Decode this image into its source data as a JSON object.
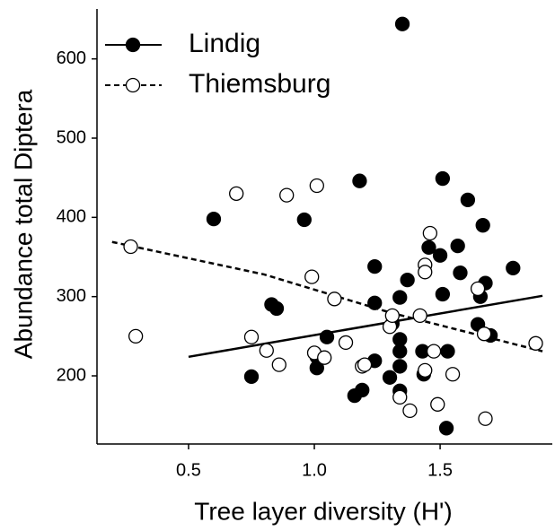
{
  "chart_data": {
    "type": "scatter",
    "x_label": "Tree layer diversity (H')",
    "y_label": "Abundance total Diptera",
    "xlim": [
      0.136,
      1.946
    ],
    "ylim": [
      114,
      663
    ],
    "xticks": [
      0.5,
      {
        "value": 1,
        "label": "1.0"
      },
      1.5
    ],
    "yticks": [
      200,
      300,
      400,
      500,
      600
    ],
    "legend": "top-left",
    "series": [
      {
        "name": "Lindig",
        "color": "#000000",
        "marker_fill": "#000000",
        "line_style": "solid",
        "x": [
          1.35,
          0.6,
          1.18,
          1.51,
          1.61,
          1.67,
          0.96,
          1.455,
          1.57,
          1.5,
          1.24,
          1.58,
          1.37,
          1.68,
          1.79,
          1.51,
          1.34,
          1.66,
          1.24,
          0.83,
          0.85,
          1.65,
          1.31,
          1.34,
          1.7,
          1.05,
          1.34,
          1.43,
          1.53,
          1.34,
          1.01,
          1.24,
          1.01,
          1.435,
          0.75,
          1.3,
          1.19,
          1.16,
          1.34,
          1.525
        ],
        "values": [
          644,
          398,
          446,
          449,
          422,
          390,
          397,
          362,
          364,
          352,
          338,
          330,
          321,
          317,
          336,
          303,
          299,
          300,
          292,
          290,
          285,
          265,
          266,
          246,
          251,
          249,
          231,
          231,
          231,
          212,
          224,
          219,
          210,
          202,
          199,
          198,
          182,
          175,
          181,
          134
        ],
        "trend": {
          "x": [
            0.5,
            1.907
          ],
          "y": [
            224,
            301
          ]
        }
      },
      {
        "name": "Thiemsburg",
        "color": "#000000",
        "marker_fill": "#ffffff",
        "line_style": "dashed",
        "x": [
          0.27,
          0.29,
          0.69,
          0.89,
          1.01,
          0.99,
          1.08,
          0.75,
          0.81,
          0.86,
          1.0,
          1.04,
          1.125,
          1.19,
          1.2,
          1.3,
          1.31,
          1.42,
          1.44,
          1.44,
          1.46,
          1.475,
          1.44,
          1.34,
          1.38,
          1.49,
          1.55,
          1.65,
          1.675,
          1.68,
          1.88
        ],
        "values": [
          363,
          250,
          430,
          428,
          440,
          325,
          297,
          249,
          232,
          214,
          229,
          223,
          242,
          212,
          214,
          262,
          276,
          276,
          340,
          331,
          380,
          231,
          207,
          173,
          156,
          164,
          202,
          310,
          253,
          146,
          241
        ],
        "trend": {
          "x": [
            0.196,
            0.8,
            1.3,
            1.907
          ],
          "y": [
            369,
            328,
            280,
            231
          ]
        }
      }
    ]
  }
}
